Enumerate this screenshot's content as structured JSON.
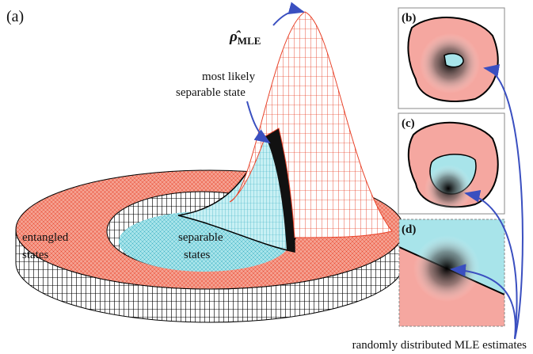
{
  "panels": {
    "a": "(a)",
    "b": "(b)",
    "c": "(c)",
    "d": "(d)"
  },
  "estimator": {
    "symbol": "ρ̂",
    "subscript": "MLE"
  },
  "annotations": {
    "separable_peak": [
      "most likely",
      "separable state"
    ],
    "entangled": [
      "entangled",
      "states"
    ],
    "separable": [
      "separable",
      "states"
    ],
    "estimates": "randomly distributed MLE estimates"
  }
}
